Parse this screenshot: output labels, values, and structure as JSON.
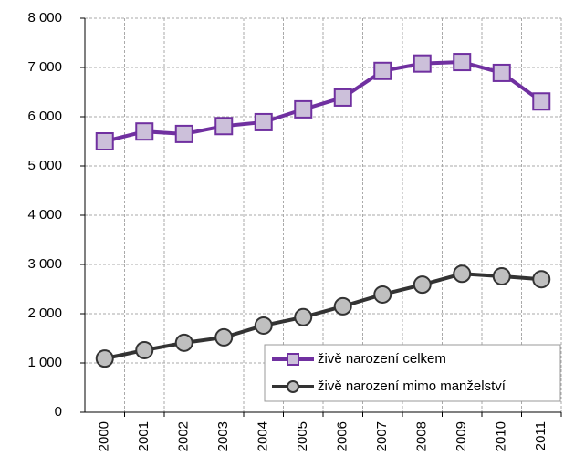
{
  "chart_data": {
    "type": "line",
    "categories": [
      "2000",
      "2001",
      "2002",
      "2003",
      "2004",
      "2005",
      "2006",
      "2007",
      "2008",
      "2009",
      "2010",
      "2011"
    ],
    "series": [
      {
        "name": "živě narození celkem",
        "color": "#7030a0",
        "marker": "square",
        "marker_fill": "#ccc0da",
        "values": [
          5500,
          5700,
          5650,
          5810,
          5890,
          6150,
          6390,
          6930,
          7080,
          7110,
          6890,
          6310
        ]
      },
      {
        "name": "živě narození mimo manželství",
        "color": "#333333",
        "marker": "circle",
        "marker_fill": "#bfbfbf",
        "values": [
          1090,
          1260,
          1410,
          1520,
          1760,
          1930,
          2150,
          2390,
          2590,
          2810,
          2760,
          2700
        ]
      }
    ],
    "ylim": [
      0,
      8000
    ],
    "yticks": [
      0,
      {
        "value": 1000,
        "label": "1 000"
      },
      {
        "value": 2000,
        "label": "2 000"
      },
      {
        "value": 3000,
        "label": "3 000"
      },
      {
        "value": 4000,
        "label": "4 000"
      },
      {
        "value": 5000,
        "label": "5 000"
      },
      {
        "value": 6000,
        "label": "6 000"
      },
      {
        "value": 7000,
        "label": "7 000"
      },
      {
        "value": 8000,
        "label": "8 000"
      }
    ],
    "grid": true,
    "legend": "lower right"
  }
}
